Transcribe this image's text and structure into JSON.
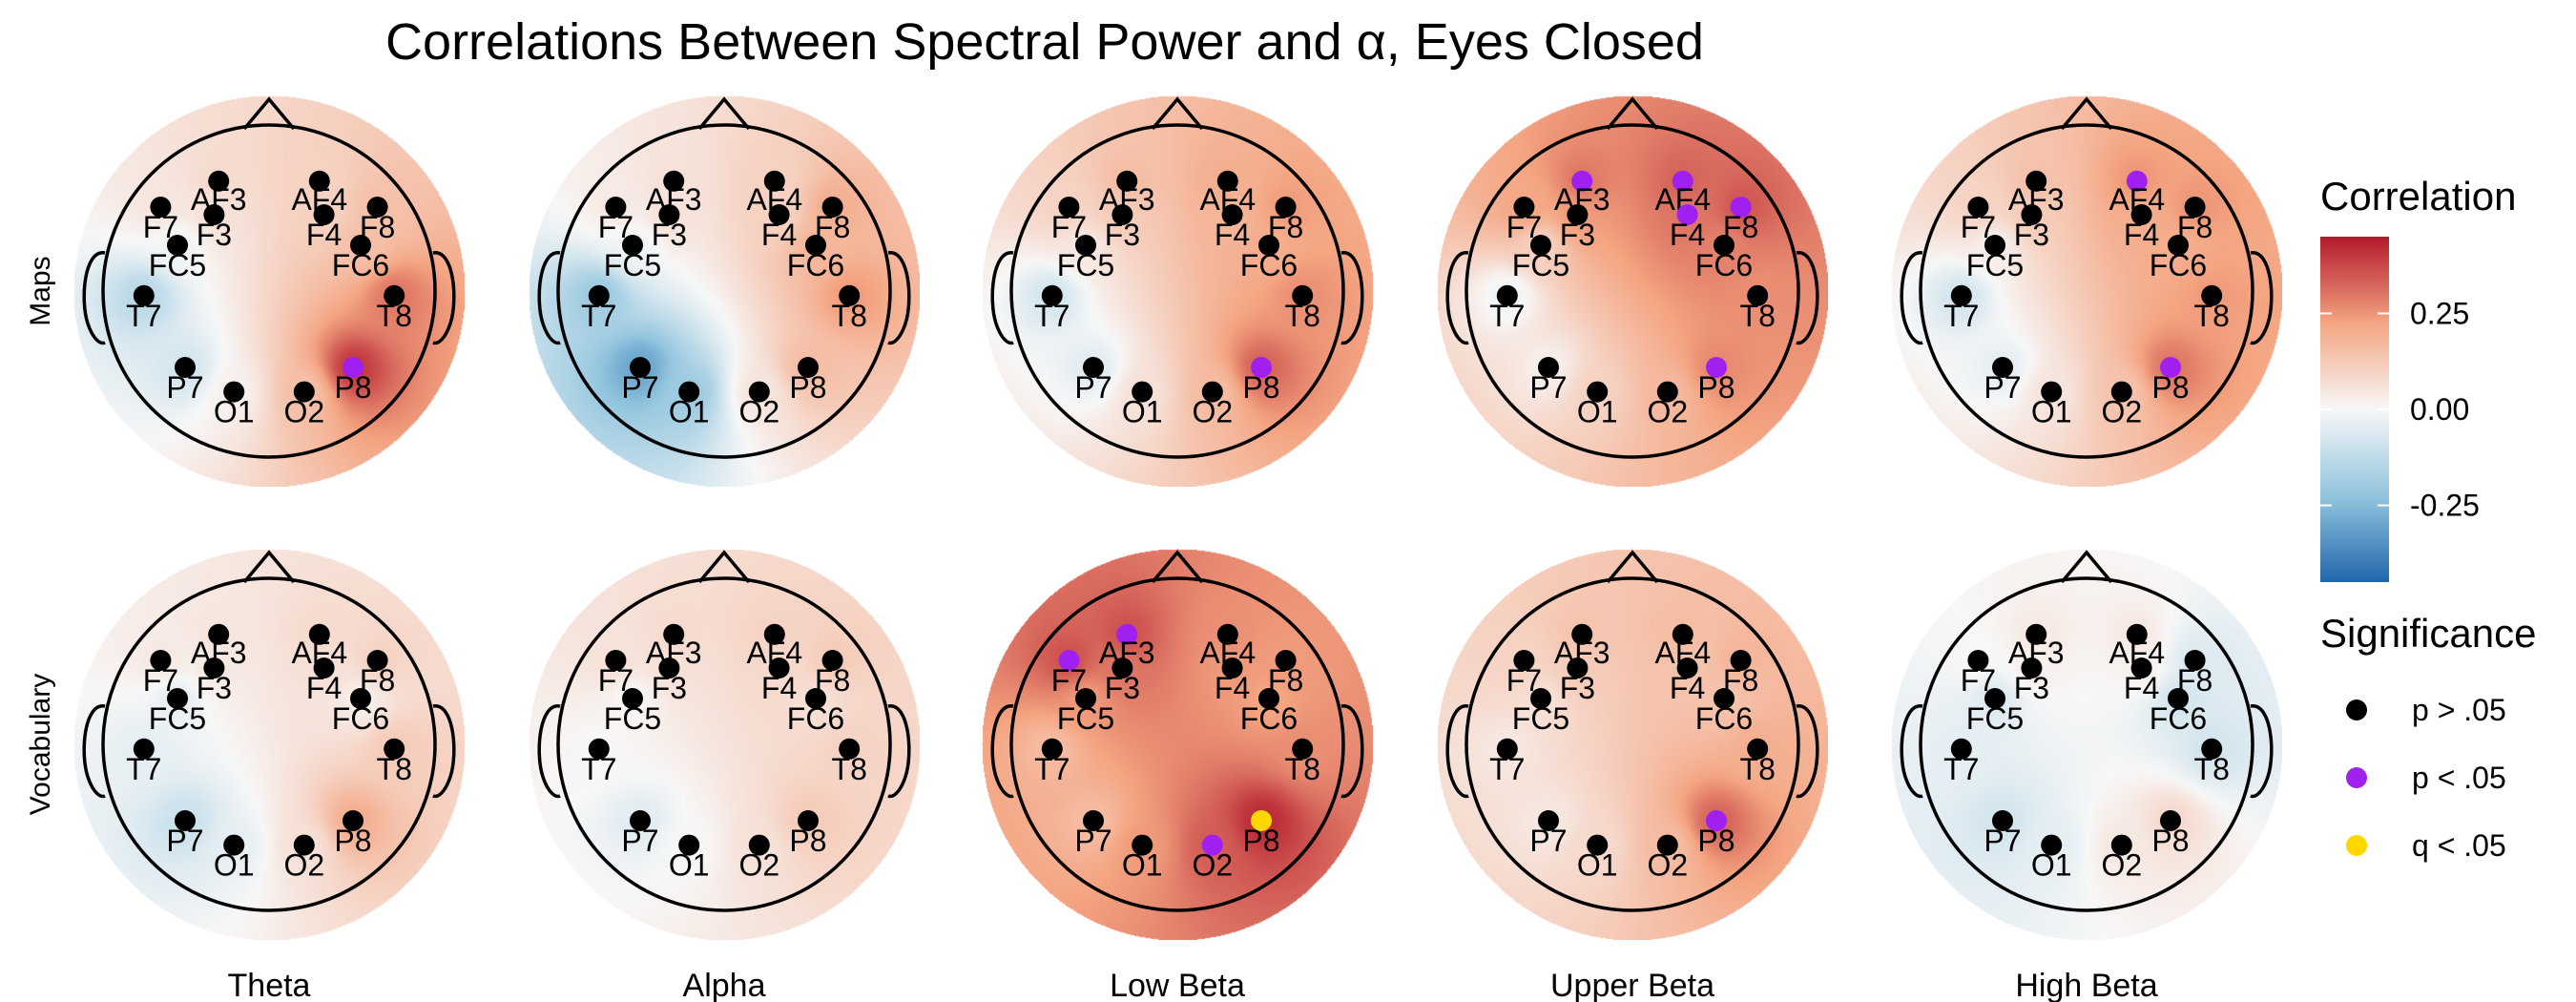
{
  "chart_data": {
    "type": "heatmap",
    "subtype": "eeg-topographic-map-grid",
    "title": "Correlations Between Spectral Power and α, Eyes Closed",
    "rows": [
      "Maps",
      "Vocabulary"
    ],
    "columns": [
      "Theta",
      "Alpha",
      "Low Beta",
      "Upper Beta",
      "High Beta"
    ],
    "electrodes": [
      {
        "name": "AF3",
        "pos": [
          -0.33,
          0.72
        ]
      },
      {
        "name": "AF4",
        "pos": [
          0.33,
          0.72
        ]
      },
      {
        "name": "F7",
        "pos": [
          -0.71,
          0.55
        ]
      },
      {
        "name": "F3",
        "pos": [
          -0.36,
          0.5
        ]
      },
      {
        "name": "F4",
        "pos": [
          0.36,
          0.5
        ]
      },
      {
        "name": "F8",
        "pos": [
          0.71,
          0.55
        ]
      },
      {
        "name": "FC5",
        "pos": [
          -0.6,
          0.3
        ]
      },
      {
        "name": "FC6",
        "pos": [
          0.6,
          0.3
        ]
      },
      {
        "name": "T7",
        "pos": [
          -0.82,
          -0.03
        ]
      },
      {
        "name": "T8",
        "pos": [
          0.82,
          -0.03
        ]
      },
      {
        "name": "P7",
        "pos": [
          -0.55,
          -0.5
        ]
      },
      {
        "name": "P8",
        "pos": [
          0.55,
          -0.5
        ]
      },
      {
        "name": "O1",
        "pos": [
          -0.23,
          -0.66
        ]
      },
      {
        "name": "O2",
        "pos": [
          0.23,
          -0.66
        ]
      }
    ],
    "panels": [
      {
        "row": "Maps",
        "column": "Theta",
        "correlations": {
          "AF3": 0.08,
          "AF4": 0.1,
          "F7": 0.05,
          "F3": 0.06,
          "F4": 0.1,
          "F8": 0.15,
          "FC5": -0.02,
          "FC6": 0.15,
          "T7": -0.14,
          "T8": 0.3,
          "P7": -0.08,
          "P8": 0.4,
          "O1": 0.02,
          "O2": 0.15
        },
        "significance": {
          "P8": "p < .05"
        }
      },
      {
        "row": "Maps",
        "column": "Alpha",
        "correlations": {
          "AF3": 0.06,
          "AF4": 0.1,
          "F7": 0.04,
          "F3": 0.06,
          "F4": 0.1,
          "F8": 0.2,
          "FC5": -0.02,
          "FC6": 0.18,
          "T7": -0.2,
          "T8": 0.24,
          "P7": -0.3,
          "P8": 0.16,
          "O1": -0.2,
          "O2": 0.05
        },
        "significance": {}
      },
      {
        "row": "Maps",
        "column": "Low Beta",
        "correlations": {
          "AF3": 0.16,
          "AF4": 0.2,
          "F7": 0.1,
          "F3": 0.12,
          "F4": 0.18,
          "F8": 0.24,
          "FC5": 0.04,
          "FC6": 0.2,
          "T7": -0.08,
          "T8": 0.26,
          "P7": -0.05,
          "P8": 0.33,
          "O1": 0.06,
          "O2": 0.16
        },
        "significance": {
          "P8": "p < .05"
        }
      },
      {
        "row": "Maps",
        "column": "Upper Beta",
        "correlations": {
          "AF3": 0.3,
          "AF4": 0.33,
          "F7": 0.22,
          "F3": 0.24,
          "F4": 0.3,
          "F8": 0.35,
          "FC5": 0.1,
          "FC6": 0.28,
          "T7": -0.02,
          "T8": 0.26,
          "P7": 0.02,
          "P8": 0.27,
          "O1": 0.1,
          "O2": 0.17
        },
        "significance": {
          "AF3": "p < .05",
          "AF4": "p < .05",
          "F4": "p < .05",
          "F8": "p < .05",
          "P8": "p < .05"
        }
      },
      {
        "row": "Maps",
        "column": "High Beta",
        "correlations": {
          "AF3": 0.15,
          "AF4": 0.25,
          "F7": 0.1,
          "F3": 0.12,
          "F4": 0.2,
          "F8": 0.25,
          "FC5": 0.02,
          "FC6": 0.2,
          "T7": -0.08,
          "T8": 0.24,
          "P7": -0.04,
          "P8": 0.3,
          "O1": 0.05,
          "O2": 0.14
        },
        "significance": {
          "AF4": "p < .05",
          "P8": "p < .05"
        }
      },
      {
        "row": "Vocabulary",
        "column": "Theta",
        "correlations": {
          "AF3": 0.05,
          "AF4": 0.08,
          "F7": 0.04,
          "F3": 0.04,
          "F4": 0.06,
          "F8": 0.1,
          "FC5": -0.04,
          "FC6": 0.02,
          "T7": -0.04,
          "T8": 0.12,
          "P7": -0.1,
          "P8": 0.2,
          "O1": -0.04,
          "O2": 0.06
        },
        "significance": {}
      },
      {
        "row": "Vocabulary",
        "column": "Alpha",
        "correlations": {
          "AF3": 0.08,
          "AF4": 0.1,
          "F7": 0.06,
          "F3": 0.06,
          "F4": 0.08,
          "F8": 0.12,
          "FC5": 0.0,
          "FC6": 0.06,
          "T7": 0.0,
          "T8": 0.1,
          "P7": -0.05,
          "P8": 0.12,
          "O1": 0.0,
          "O2": 0.06
        },
        "significance": {}
      },
      {
        "row": "Vocabulary",
        "column": "Low Beta",
        "correlations": {
          "AF3": 0.36,
          "AF4": 0.26,
          "F7": 0.36,
          "F3": 0.3,
          "F4": 0.24,
          "F8": 0.24,
          "FC5": 0.24,
          "FC6": 0.22,
          "T7": 0.16,
          "T8": 0.26,
          "P7": 0.16,
          "P8": 0.42,
          "O1": 0.24,
          "O2": 0.34
        },
        "significance": {
          "AF3": "p < .05",
          "F7": "p < .05",
          "O2": "p < .05",
          "P8": "q < .05"
        }
      },
      {
        "row": "Vocabulary",
        "column": "Upper Beta",
        "correlations": {
          "AF3": 0.14,
          "AF4": 0.16,
          "F7": 0.1,
          "F3": 0.12,
          "F4": 0.14,
          "F8": 0.18,
          "FC5": 0.06,
          "FC6": 0.14,
          "T7": 0.04,
          "T8": 0.2,
          "P7": 0.04,
          "P8": 0.33,
          "O1": 0.08,
          "O2": 0.16
        },
        "significance": {
          "P8": "p < .05"
        }
      },
      {
        "row": "Vocabulary",
        "column": "High Beta",
        "correlations": {
          "AF3": 0.04,
          "AF4": 0.04,
          "F7": 0.0,
          "F3": 0.02,
          "F4": 0.02,
          "F8": -0.06,
          "FC5": -0.06,
          "FC6": -0.08,
          "T7": -0.04,
          "T8": -0.08,
          "P7": -0.08,
          "P8": 0.08,
          "O1": -0.04,
          "O2": 0.04
        },
        "significance": {}
      }
    ],
    "colorbar": {
      "title": "Correlation",
      "range": [
        -0.45,
        0.45
      ],
      "ticks": [
        0.25,
        0.0,
        -0.25
      ],
      "tick_labels": [
        "0.25",
        "0.00",
        "-0.25"
      ],
      "low_color": "#2166ac",
      "mid_color": "#f7f7f7",
      "high_color": "#b2182b"
    },
    "significance_legend": {
      "title": "Significance",
      "items": [
        {
          "label": "p > .05",
          "color": "#000000"
        },
        {
          "label": "p < .05",
          "color": "#a020f0"
        },
        {
          "label": "q < .05",
          "color": "#ffd700"
        }
      ]
    }
  }
}
